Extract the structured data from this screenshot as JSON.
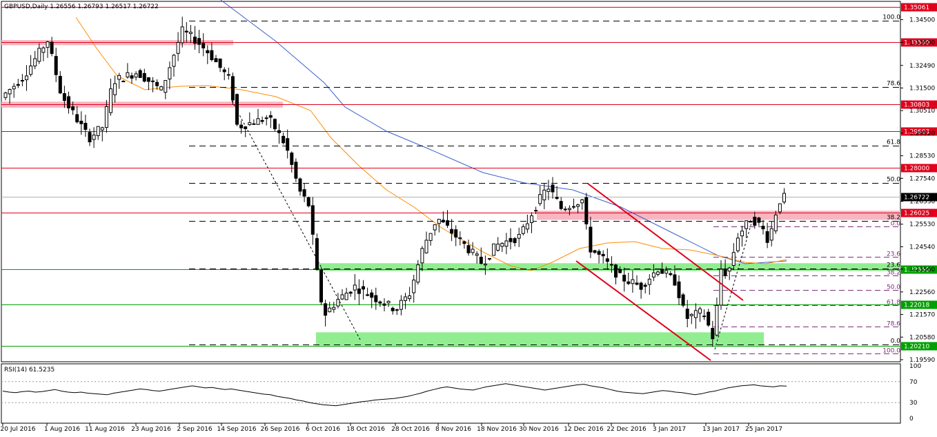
{
  "chart_data": {
    "type": "candlestick",
    "title": "GBPUSD,Daily  1.26556  1.26793  1.26517  1.26722",
    "symbol": "GBPUSD",
    "timeframe": "Daily",
    "ohlc_last": {
      "open": 1.26556,
      "high": 1.26793,
      "low": 1.26517,
      "close": 1.26722
    },
    "x_labels": [
      "20 Jul 2016",
      "1 Aug 2016",
      "11 Aug 2016",
      "23 Aug 2016",
      "2 Sep 2016",
      "14 Sep 2016",
      "26 Sep 2016",
      "6 Oct 2016",
      "18 Oct 2016",
      "28 Oct 2016",
      "8 Nov 2016",
      "18 Nov 2016",
      "30 Nov 2016",
      "12 Dec 2016",
      "22 Dec 2016",
      "3 Jan 2017",
      "13 Jan 2017",
      "25 Jan 2017"
    ],
    "y_ticks": [
      "1.34500",
      "1.33500",
      "1.32490",
      "1.31500",
      "1.30510",
      "1.29520",
      "1.28530",
      "1.27540",
      "1.26530",
      "1.25530",
      "1.24540",
      "1.23560",
      "1.22560",
      "1.21570",
      "1.20580",
      "1.19590"
    ],
    "ylim": [
      1.1925,
      1.3545
    ],
    "horizontal_levels": [
      {
        "price": 1.35061,
        "label": "1.35061",
        "kind": "resistance"
      },
      {
        "price": 1.335,
        "label": "1.33500",
        "kind": "resistance"
      },
      {
        "price": 1.30803,
        "label": "1.30803",
        "kind": "resistance"
      },
      {
        "price": 1.29603,
        "label": "1.29603",
        "kind": "resistance"
      },
      {
        "price": 1.28,
        "label": "1.28000",
        "kind": "resistance"
      },
      {
        "price": 1.26025,
        "label": "1.26025",
        "kind": "resistance"
      },
      {
        "price": 1.2355,
        "label": "1.23550",
        "kind": "support"
      },
      {
        "price": 1.22018,
        "label": "1.22018",
        "kind": "support"
      },
      {
        "price": 1.2021,
        "label": "1.20210",
        "kind": "support"
      }
    ],
    "current_price_label": "1.26722",
    "fib_main_labels": [
      "100.0",
      "78.6",
      "61.8",
      "50.0",
      "38.2",
      "23.6",
      "0.0"
    ],
    "fib_main_prices": [
      1.3445,
      1.3155,
      1.2897,
      1.2733,
      1.2567,
      1.2358,
      1.2025
    ],
    "fib_small_labels": [
      "0.0",
      "23.6",
      "38.2",
      "50.0",
      "61.8",
      "78.6",
      "100.0"
    ],
    "fib_small_prices": [
      1.2542,
      1.241,
      1.2329,
      1.2264,
      1.2197,
      1.2104,
      1.1986
    ],
    "rsi": {
      "label": "RSI(14) 61.5235",
      "levels": [
        "70",
        "30",
        "100",
        "0"
      ],
      "ylim": [
        0,
        100
      ],
      "guide_lines": [
        70,
        30
      ],
      "values": [
        52,
        50,
        49,
        51,
        52,
        50,
        51,
        53,
        55,
        52,
        50,
        49,
        50,
        48,
        47,
        46,
        45,
        48,
        50,
        52,
        54,
        56,
        55,
        53,
        52,
        54,
        56,
        58,
        60,
        62,
        60,
        58,
        59,
        57,
        55,
        56,
        54,
        52,
        50,
        48,
        46,
        45,
        42,
        40,
        38,
        35,
        33,
        30,
        28,
        26,
        25,
        24,
        26,
        28,
        30,
        32,
        33,
        35,
        36,
        37,
        38,
        40,
        42,
        45,
        48,
        52,
        55,
        58,
        60,
        58,
        56,
        55,
        54,
        57,
        60,
        62,
        64,
        66,
        64,
        62,
        60,
        58,
        56,
        54,
        56,
        58,
        60,
        62,
        64,
        65,
        62,
        60,
        58,
        55,
        52,
        50,
        49,
        48,
        47,
        49,
        51,
        53,
        52,
        50,
        49,
        47,
        45,
        47,
        50,
        52,
        55,
        58,
        60,
        62,
        63,
        64,
        62,
        61,
        60,
        62,
        61.5
      ]
    },
    "moving_averages": [
      {
        "name": "MA slow",
        "color": "#3a5fcd"
      },
      {
        "name": "MA fast",
        "color": "#ff8c00"
      }
    ],
    "colors": {
      "bull": "#ffffff",
      "bear": "#000000",
      "resistance": "#e0001b",
      "support": "#00a000",
      "resistance_zone": "#f9b5c0",
      "support_zone": "#90ee90",
      "channel": "#e0001b",
      "fib": "#000000",
      "fib_small": "#7b2d7b"
    }
  }
}
